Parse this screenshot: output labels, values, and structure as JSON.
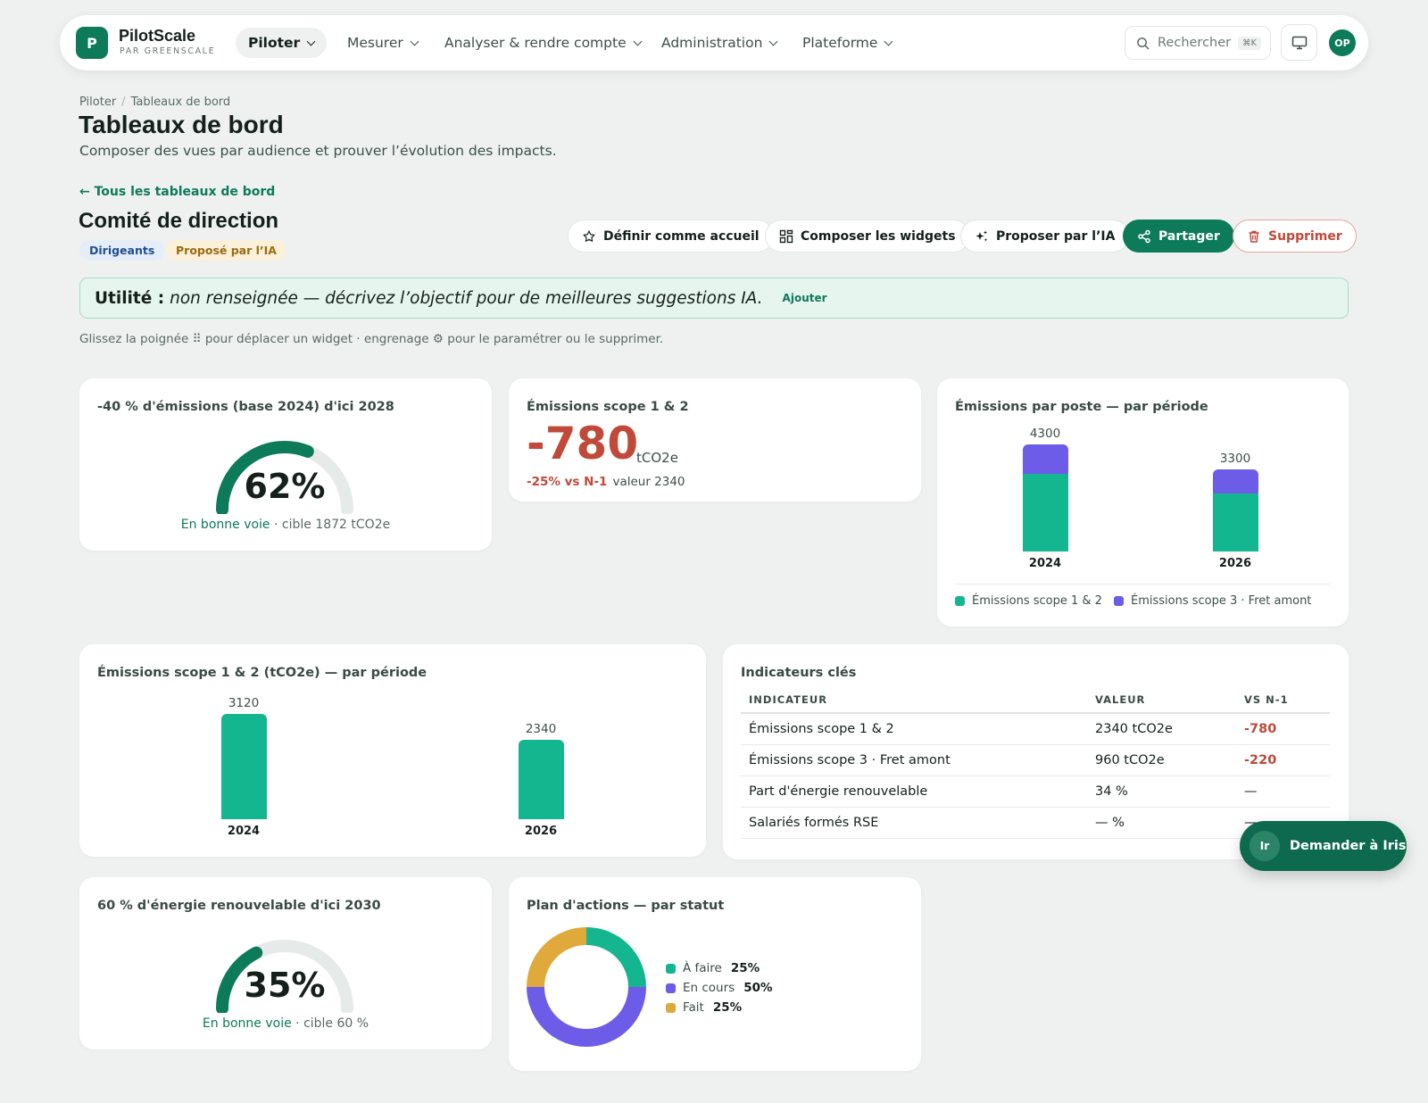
{
  "app": {
    "name": "PilotScale",
    "by": "PAR GREENSCALE",
    "avatar": "OP"
  },
  "nav": [
    "Piloter",
    "Mesurer",
    "Analyser & rendre compte",
    "Administration",
    "Plateforme"
  ],
  "search": {
    "placeholder": "Rechercher",
    "shortcut": "⌘K"
  },
  "breadcrumb": [
    "Piloter",
    "Tableaux de bord"
  ],
  "page": {
    "title": "Tableaux de bord",
    "subtitle": "Composer des vues par audience et prouver l’évolution des impacts."
  },
  "back_link": "← Tous les tableaux de bord",
  "dashboard": {
    "title": "Comité de direction",
    "badges": [
      "Dirigeants",
      "Proposé par l’IA"
    ],
    "actions": {
      "home": "Définir comme accueil",
      "widgets": "Composer les widgets",
      "ai": "Proposer par l’IA",
      "share": "Partager",
      "delete": "Supprimer"
    }
  },
  "utility": {
    "label": "Utilité :",
    "text": "non renseignée — décrivez l’objectif pour de meilleures suggestions IA.",
    "action": "Ajouter"
  },
  "hint": "Glissez la poignée ⠿ pour déplacer un widget · engrenage ⚙ pour le paramétrer ou le supprimer.",
  "widgets": {
    "goal1": {
      "title": "-40 % d'émissions (base 2024) d'ici 2028",
      "pct": "62%",
      "progress": 0.62,
      "status": "En bonne voie",
      "target": " · cible 1872 tCO2e"
    },
    "kpi": {
      "title": "Émissions scope 1 & 2",
      "value": "-780",
      "unit": "tCO2e",
      "delta": "-25% vs N-1",
      "note": "valeur 2340"
    },
    "stack": {
      "title": "Émissions par poste — par période"
    },
    "bars": {
      "title": "Émissions scope 1 & 2 (tCO2e) — par période"
    },
    "table": {
      "title": "Indicateurs clés",
      "columns": [
        "INDICATEUR",
        "VALEUR",
        "VS N-1"
      ],
      "rows": [
        [
          "Émissions scope 1 & 2",
          "2340 tCO2e",
          "-780"
        ],
        [
          "Émissions scope 3 · Fret amont",
          "960 tCO2e",
          "-220"
        ],
        [
          "Part d'énergie renouvelable",
          "34 %",
          "—"
        ],
        [
          "Salariés formés RSE",
          "— %",
          "—"
        ]
      ]
    },
    "goal2": {
      "title": "60 % d'énergie renouvelable d'ici 2030",
      "pct": "35%",
      "progress": 0.35,
      "status": "En bonne voie",
      "target": " · cible 60 %"
    },
    "donut": {
      "title": "Plan d'actions — par statut"
    }
  },
  "assistant": {
    "avatar": "Ir",
    "label": "Demander à Iris"
  },
  "colors": {
    "primary": "#0d7a5a",
    "scope12": "#14b68f",
    "scope3": "#6c5ce7",
    "todo": "#14b68f",
    "doing": "#6c5ce7",
    "done": "#e0a93b",
    "negative": "#c0493a"
  },
  "chart_data": [
    {
      "type": "bar",
      "stacked": true,
      "title": "Émissions par poste — par période",
      "categories": [
        "2024",
        "2026"
      ],
      "totals": [
        4300,
        3300
      ],
      "series": [
        {
          "name": "Émissions scope 1 & 2",
          "values": [
            3120,
            2340
          ]
        },
        {
          "name": "Émissions scope 3 · Fret amont",
          "values": [
            1180,
            960
          ]
        }
      ],
      "legend": "bottom"
    },
    {
      "type": "bar",
      "title": "Émissions scope 1 & 2 (tCO2e) — par période",
      "categories": [
        "2024",
        "2026"
      ],
      "values": [
        3120,
        2340
      ]
    },
    {
      "type": "pie",
      "donut": true,
      "title": "Plan d'actions — par statut",
      "labels": [
        "À faire",
        "En cours",
        "Fait"
      ],
      "values": [
        25,
        50,
        25
      ],
      "value_labels": [
        "25%",
        "50%",
        "25%"
      ]
    }
  ]
}
